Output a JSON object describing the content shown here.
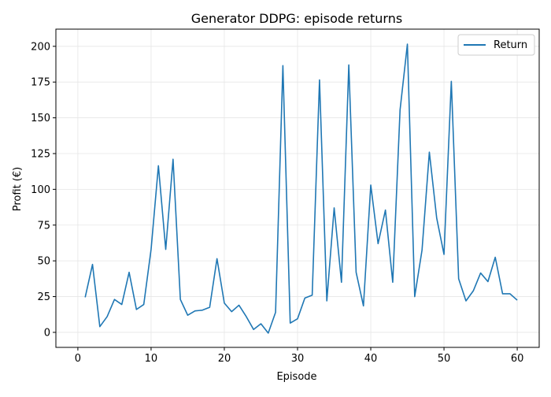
{
  "chart_data": {
    "type": "line",
    "title": "Generator DDPG: episode returns",
    "xlabel": "Episode",
    "ylabel": "Profit (€)",
    "xlim": [
      -3,
      63
    ],
    "ylim": [
      -10.5,
      212
    ],
    "xticks": [
      0,
      10,
      20,
      30,
      40,
      50,
      60
    ],
    "yticks": [
      0,
      25,
      50,
      75,
      100,
      125,
      150,
      175,
      200
    ],
    "grid": true,
    "legend": "top-right",
    "colors": {
      "line": "#1f77b4",
      "grid": "#e6e6e6",
      "axis": "#000000"
    },
    "series": [
      {
        "name": "Return",
        "x": [
          1,
          2,
          3,
          4,
          5,
          6,
          7,
          8,
          9,
          10,
          11,
          12,
          13,
          14,
          15,
          16,
          17,
          18,
          19,
          20,
          21,
          22,
          23,
          24,
          25,
          26,
          27,
          28,
          29,
          30,
          31,
          32,
          33,
          34,
          35,
          36,
          37,
          38,
          39,
          40,
          41,
          42,
          43,
          44,
          45,
          46,
          47,
          48,
          49,
          50,
          51,
          52,
          53,
          54,
          55,
          56,
          57,
          58,
          59,
          60
        ],
        "values": [
          24.5,
          47.5,
          4,
          11,
          23,
          19.5,
          42,
          16,
          19.5,
          58,
          116.5,
          58,
          121,
          23,
          12,
          15,
          15.5,
          17.5,
          51.5,
          20.5,
          14.5,
          19,
          11,
          2,
          6,
          -0.5,
          14,
          186.5,
          6.5,
          9.5,
          24,
          26,
          176.5,
          22,
          87,
          35,
          187,
          42,
          18.5,
          103,
          62,
          85.5,
          35,
          155.5,
          201.5,
          25,
          57.5,
          126,
          80,
          54.5,
          175.5,
          37.5,
          22,
          29,
          41.5,
          35.5,
          52.5,
          27,
          27,
          22.5
        ]
      }
    ]
  }
}
